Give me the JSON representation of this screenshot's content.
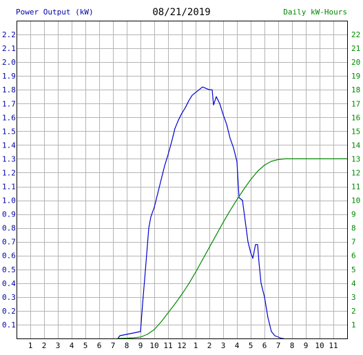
{
  "header": {
    "left_axis_title": "Power Output (kW)",
    "date": "08/21/2019",
    "right_axis_title": "Daily kW-Hours"
  },
  "colors": {
    "power_line": "#0000cc",
    "energy_line": "#008800",
    "left_axis_text": "#0000aa",
    "right_axis_text": "#008800",
    "grid": "#b4b4b4",
    "frame": "#000000"
  },
  "chart_data": {
    "type": "line",
    "title": "08/21/2019",
    "grid": true,
    "x_ticks": [
      "1",
      "2",
      "3",
      "4",
      "5",
      "6",
      "7",
      "8",
      "9",
      "10",
      "11",
      "12",
      "1",
      "2",
      "3",
      "4",
      "5",
      "6",
      "7",
      "8",
      "9",
      "10",
      "11"
    ],
    "x_range_hours": [
      0,
      24
    ],
    "y_left": {
      "label": "Power Output (kW)",
      "range": [
        0,
        2.3
      ],
      "ticks": [
        "0.1",
        "0.2",
        "0.3",
        "0.4",
        "0.5",
        "0.6",
        "0.7",
        "0.8",
        "0.9",
        "1.0",
        "1.1",
        "1.2",
        "1.3",
        "1.4",
        "1.5",
        "1.6",
        "1.7",
        "1.8",
        "1.9",
        "2.0",
        "2.1",
        "2.2"
      ]
    },
    "y_right": {
      "label": "Daily kW-Hours",
      "range": [
        0,
        23
      ],
      "ticks": [
        "1",
        "2",
        "3",
        "4",
        "5",
        "6",
        "7",
        "8",
        "9",
        "10",
        "11",
        "12",
        "13",
        "14",
        "15",
        "16",
        "17",
        "18",
        "19",
        "20",
        "21",
        "22"
      ]
    },
    "series": [
      {
        "name": "Power Output (kW)",
        "axis": "left",
        "points": [
          [
            7.35,
            0.0
          ],
          [
            7.5,
            0.02
          ],
          [
            8.0,
            0.03
          ],
          [
            8.5,
            0.04
          ],
          [
            9.0,
            0.05
          ],
          [
            9.15,
            0.25
          ],
          [
            9.4,
            0.55
          ],
          [
            9.6,
            0.8
          ],
          [
            9.75,
            0.88
          ],
          [
            10.0,
            0.95
          ],
          [
            10.25,
            1.05
          ],
          [
            10.5,
            1.15
          ],
          [
            10.75,
            1.25
          ],
          [
            11.0,
            1.33
          ],
          [
            11.25,
            1.42
          ],
          [
            11.5,
            1.52
          ],
          [
            11.75,
            1.58
          ],
          [
            12.0,
            1.63
          ],
          [
            12.25,
            1.67
          ],
          [
            12.5,
            1.72
          ],
          [
            12.75,
            1.76
          ],
          [
            13.0,
            1.78
          ],
          [
            13.25,
            1.8
          ],
          [
            13.5,
            1.82
          ],
          [
            13.75,
            1.81
          ],
          [
            14.0,
            1.8
          ],
          [
            14.2,
            1.8
          ],
          [
            14.3,
            1.69
          ],
          [
            14.5,
            1.75
          ],
          [
            14.75,
            1.7
          ],
          [
            15.0,
            1.62
          ],
          [
            15.25,
            1.55
          ],
          [
            15.5,
            1.45
          ],
          [
            15.75,
            1.38
          ],
          [
            16.0,
            1.28
          ],
          [
            16.15,
            1.02
          ],
          [
            16.4,
            1.0
          ],
          [
            16.6,
            0.85
          ],
          [
            16.8,
            0.7
          ],
          [
            17.0,
            0.62
          ],
          [
            17.15,
            0.58
          ],
          [
            17.35,
            0.68
          ],
          [
            17.5,
            0.68
          ],
          [
            17.6,
            0.55
          ],
          [
            17.75,
            0.4
          ],
          [
            18.0,
            0.3
          ],
          [
            18.25,
            0.15
          ],
          [
            18.5,
            0.05
          ],
          [
            18.75,
            0.02
          ],
          [
            19.0,
            0.01
          ],
          [
            19.25,
            0.0
          ],
          [
            19.4,
            0.0
          ]
        ]
      },
      {
        "name": "Daily kW-Hours",
        "axis": "right",
        "points": [
          [
            7.35,
            0.0
          ],
          [
            8.0,
            0.02
          ],
          [
            8.5,
            0.05
          ],
          [
            9.0,
            0.1
          ],
          [
            9.5,
            0.3
          ],
          [
            10.0,
            0.65
          ],
          [
            10.5,
            1.2
          ],
          [
            11.0,
            1.85
          ],
          [
            11.5,
            2.5
          ],
          [
            12.0,
            3.2
          ],
          [
            12.5,
            3.95
          ],
          [
            13.0,
            4.8
          ],
          [
            13.5,
            5.7
          ],
          [
            14.0,
            6.6
          ],
          [
            14.5,
            7.5
          ],
          [
            15.0,
            8.4
          ],
          [
            15.5,
            9.25
          ],
          [
            16.0,
            10.05
          ],
          [
            16.5,
            10.8
          ],
          [
            17.0,
            11.5
          ],
          [
            17.5,
            12.1
          ],
          [
            18.0,
            12.55
          ],
          [
            18.5,
            12.82
          ],
          [
            19.0,
            12.95
          ],
          [
            19.5,
            13.0
          ],
          [
            24.0,
            13.0
          ]
        ]
      }
    ]
  }
}
